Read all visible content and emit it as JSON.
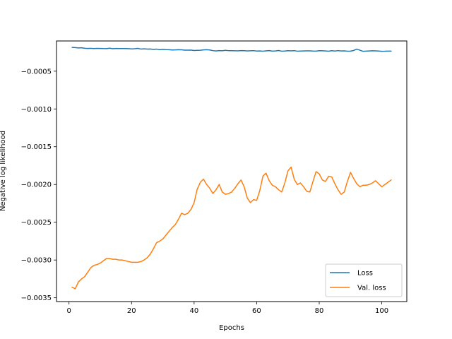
{
  "chart_data": {
    "type": "line",
    "xlabel": "Epochs",
    "ylabel": "Negative log likelihood",
    "xlim": [
      -4,
      108
    ],
    "ylim": [
      -0.00355,
      -0.0001
    ],
    "xticks": [
      0,
      20,
      40,
      60,
      80,
      100
    ],
    "xtick_labels": [
      "0",
      "20",
      "40",
      "60",
      "80",
      "100"
    ],
    "yticks": [
      -0.0035,
      -0.003,
      -0.0025,
      -0.002,
      -0.0015,
      -0.001,
      -0.0005
    ],
    "ytick_labels": [
      "−0.0035",
      "−0.0030",
      "−0.0025",
      "−0.0020",
      "−0.0015",
      "−0.0010",
      "−0.0005"
    ],
    "grid": false,
    "legend_position": "bottom-right",
    "series": [
      {
        "name": "Loss",
        "color": "#1f77b4",
        "x": [
          1,
          2,
          3,
          4,
          5,
          6,
          7,
          8,
          9,
          10,
          11,
          12,
          13,
          14,
          15,
          16,
          17,
          18,
          19,
          20,
          21,
          22,
          23,
          24,
          25,
          26,
          27,
          28,
          29,
          30,
          31,
          32,
          33,
          34,
          35,
          36,
          37,
          38,
          39,
          40,
          41,
          42,
          43,
          44,
          45,
          46,
          47,
          48,
          49,
          50,
          51,
          52,
          53,
          54,
          55,
          56,
          57,
          58,
          59,
          60,
          61,
          62,
          63,
          64,
          65,
          66,
          67,
          68,
          69,
          70,
          71,
          72,
          73,
          74,
          75,
          76,
          77,
          78,
          79,
          80,
          81,
          82,
          83,
          84,
          85,
          86,
          87,
          88,
          89,
          90,
          91,
          92,
          93,
          94,
          95,
          96,
          97,
          98,
          99,
          100,
          101,
          102,
          103
        ],
        "values": [
          -0.000185,
          -0.000188,
          -0.000192,
          -0.00019,
          -0.000197,
          -0.000199,
          -0.000198,
          -0.0002,
          -0.000198,
          -0.000199,
          -0.000201,
          -0.000202,
          -0.000196,
          -0.000203,
          -0.000199,
          -0.0002,
          -0.0002,
          -0.000201,
          -0.000202,
          -0.000205,
          -0.000203,
          -0.000198,
          -0.000207,
          -0.000204,
          -0.000208,
          -0.000206,
          -0.000212,
          -0.000208,
          -0.000216,
          -0.000211,
          -0.000214,
          -0.000216,
          -0.000219,
          -0.000218,
          -0.000216,
          -0.000217,
          -0.000222,
          -0.000221,
          -0.00022,
          -0.000226,
          -0.000224,
          -0.000223,
          -0.000218,
          -0.000216,
          -0.000219,
          -0.000228,
          -0.000232,
          -0.000227,
          -0.00023,
          -0.000224,
          -0.000228,
          -0.000229,
          -0.00023,
          -0.000231,
          -0.000227,
          -0.000229,
          -0.000232,
          -0.00023,
          -0.000228,
          -0.000233,
          -0.000232,
          -0.000235,
          -0.000231,
          -0.000227,
          -0.000234,
          -0.000232,
          -0.000226,
          -0.000235,
          -0.000233,
          -0.000229,
          -0.000231,
          -0.000228,
          -0.000235,
          -0.000233,
          -0.000232,
          -0.000231,
          -0.000231,
          -0.000233,
          -0.000234,
          -0.000229,
          -0.00023,
          -0.000232,
          -0.000236,
          -0.000229,
          -0.000233,
          -0.000228,
          -0.000232,
          -0.000231,
          -0.000235,
          -0.000234,
          -0.000226,
          -0.000208,
          -0.000222,
          -0.000237,
          -0.000234,
          -0.000232,
          -0.00023,
          -0.000231,
          -0.000233,
          -0.000237,
          -0.000236,
          -0.000234,
          -0.000234
        ]
      },
      {
        "name": "Val. loss",
        "color": "#ff7f0e",
        "x": [
          1,
          2,
          3,
          4,
          5,
          6,
          7,
          8,
          9,
          10,
          11,
          12,
          13,
          14,
          15,
          16,
          17,
          18,
          19,
          20,
          21,
          22,
          23,
          24,
          25,
          26,
          27,
          28,
          29,
          30,
          31,
          32,
          33,
          34,
          35,
          36,
          37,
          38,
          39,
          40,
          41,
          42,
          43,
          44,
          45,
          46,
          47,
          48,
          49,
          50,
          51,
          52,
          53,
          54,
          55,
          56,
          57,
          58,
          59,
          60,
          61,
          62,
          63,
          64,
          65,
          66,
          67,
          68,
          69,
          70,
          71,
          72,
          73,
          74,
          75,
          76,
          77,
          78,
          79,
          80,
          81,
          82,
          83,
          84,
          85,
          86,
          87,
          88,
          89,
          90,
          91,
          92,
          93,
          94,
          95,
          96,
          97,
          98,
          99,
          100,
          101,
          102,
          103
        ],
        "values": [
          -0.00336,
          -0.00338,
          -0.00329,
          -0.00325,
          -0.00322,
          -0.00316,
          -0.0031,
          -0.00307,
          -0.00306,
          -0.00304,
          -0.00301,
          -0.00298,
          -0.00298,
          -0.00299,
          -0.00299,
          -0.003,
          -0.003,
          -0.00301,
          -0.00302,
          -0.00303,
          -0.00303,
          -0.00303,
          -0.00302,
          -0.003,
          -0.00297,
          -0.00292,
          -0.00285,
          -0.00277,
          -0.00275,
          -0.00272,
          -0.00267,
          -0.00262,
          -0.00257,
          -0.00253,
          -0.00246,
          -0.00238,
          -0.0024,
          -0.00238,
          -0.00233,
          -0.00224,
          -0.00206,
          -0.00197,
          -0.00193,
          -0.002,
          -0.00205,
          -0.00212,
          -0.00207,
          -0.002,
          -0.0021,
          -0.00213,
          -0.00212,
          -0.0021,
          -0.00205,
          -0.00199,
          -0.00194,
          -0.00203,
          -0.00218,
          -0.00224,
          -0.0022,
          -0.00221,
          -0.00208,
          -0.00189,
          -0.00185,
          -0.00195,
          -0.00201,
          -0.00203,
          -0.00207,
          -0.0021,
          -0.00198,
          -0.00182,
          -0.00177,
          -0.00193,
          -0.002,
          -0.00198,
          -0.00203,
          -0.00209,
          -0.0021,
          -0.00196,
          -0.00183,
          -0.00186,
          -0.00194,
          -0.00196,
          -0.00189,
          -0.0019,
          -0.00199,
          -0.00207,
          -0.00213,
          -0.0021,
          -0.00196,
          -0.00184,
          -0.00192,
          -0.00199,
          -0.00203,
          -0.00201,
          -0.00201,
          -0.002,
          -0.00198,
          -0.00195,
          -0.00199,
          -0.00203,
          -0.002,
          -0.00197,
          -0.00194
        ]
      }
    ]
  }
}
